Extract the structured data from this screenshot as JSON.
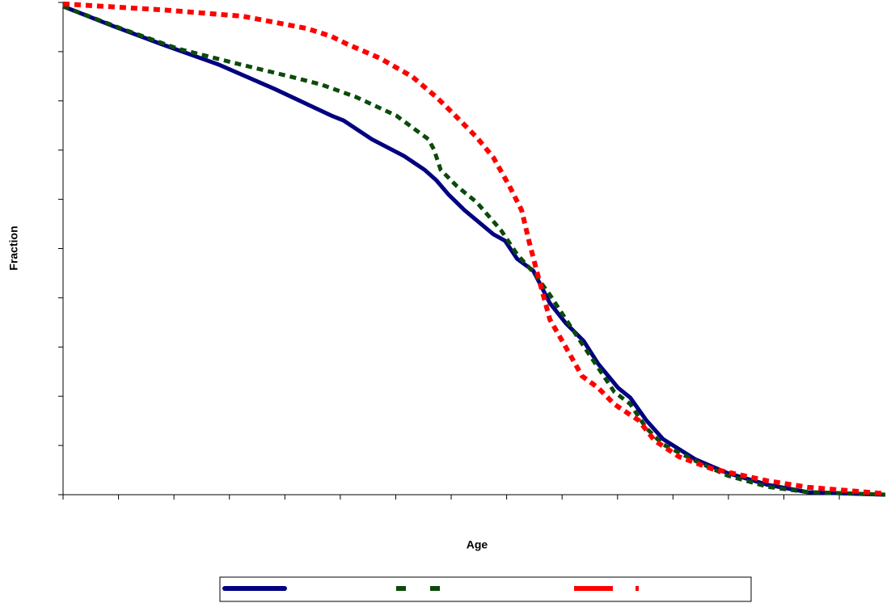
{
  "chart_data": {
    "type": "line",
    "ylabel": "Fraction",
    "xlabel": "Age",
    "xlim": [
      0,
      14.83
    ],
    "xticks": [
      0,
      1,
      2,
      3,
      4,
      5,
      6,
      7,
      8,
      9,
      10,
      11,
      12,
      13,
      14
    ],
    "ylim": [
      0,
      1
    ],
    "yticks": [
      0,
      0.1,
      0.2,
      0.3,
      0.4,
      0.5,
      0.6,
      0.7,
      0.8,
      0.9,
      1
    ],
    "series": [
      {
        "color": "#000080",
        "dash": "solid",
        "x": [
          0,
          0.9,
          1.78,
          2.8,
          3.82,
          4.84,
          5.06,
          5.57,
          6.15,
          6.52,
          6.73,
          6.95,
          7.24,
          7.76,
          7.97,
          8.19,
          8.48,
          8.78,
          9.07,
          9.39,
          9.65,
          10.01,
          10.23,
          10.52,
          10.82,
          11.4,
          11.98,
          12.71,
          13.44,
          14.83
        ],
        "values": [
          0.992,
          0.952,
          0.915,
          0.874,
          0.824,
          0.77,
          0.76,
          0.722,
          0.688,
          0.66,
          0.639,
          0.61,
          0.578,
          0.529,
          0.516,
          0.479,
          0.455,
          0.389,
          0.348,
          0.312,
          0.266,
          0.217,
          0.197,
          0.151,
          0.113,
          0.072,
          0.044,
          0.02,
          0.005,
          0
        ]
      },
      {
        "color": "#0b4a0b",
        "dash": "dashed",
        "x": [
          0,
          1.05,
          2.07,
          3.09,
          4.11,
          4.66,
          5.28,
          6.01,
          6.59,
          6.69,
          6.81,
          7.1,
          7.46,
          7.9,
          8.19,
          8.48,
          8.78,
          9.21,
          9.65,
          9.94,
          10.23,
          10.52,
          10.82,
          11.4,
          11.98,
          12.71,
          13.44,
          14.83
        ],
        "values": [
          0.992,
          0.947,
          0.906,
          0.877,
          0.849,
          0.833,
          0.808,
          0.77,
          0.722,
          0.701,
          0.66,
          0.627,
          0.594,
          0.537,
          0.488,
          0.452,
          0.406,
          0.332,
          0.258,
          0.209,
          0.184,
          0.135,
          0.102,
          0.069,
          0.039,
          0.016,
          0.005,
          0
        ]
      },
      {
        "color": "#ff0000",
        "dash": "dashed",
        "x": [
          0,
          1.78,
          3.24,
          4.4,
          4.84,
          5.13,
          5.71,
          6.3,
          6.73,
          7.03,
          7.46,
          7.76,
          8.05,
          8.27,
          8.41,
          8.56,
          8.78,
          9.07,
          9.36,
          9.65,
          9.94,
          10.38,
          10.67,
          11.11,
          11.69,
          12.71,
          13.44,
          14.83
        ],
        "values": [
          0.997,
          0.985,
          0.972,
          0.947,
          0.931,
          0.915,
          0.887,
          0.849,
          0.808,
          0.775,
          0.726,
          0.685,
          0.627,
          0.578,
          0.512,
          0.447,
          0.356,
          0.299,
          0.241,
          0.217,
          0.184,
          0.151,
          0.11,
          0.077,
          0.053,
          0.028,
          0.015,
          0.002
        ]
      }
    ],
    "legend": "bottom"
  }
}
